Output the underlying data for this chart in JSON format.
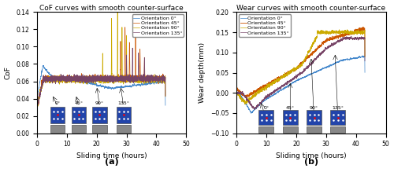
{
  "title_a": "CoF curves with smooth counter-surface",
  "title_b": "Wear curves with smooth counter-surface",
  "xlabel": "Sliding time (hours)",
  "ylabel_a": "CoF",
  "ylabel_b": "Wear depth(mm)",
  "label_a": "(a)",
  "label_b": "(b)",
  "legend_entries": [
    "Orientation 0°",
    "Orientation 45°",
    "Orientation 90°",
    "Orientation 135°"
  ],
  "colors": [
    "#4488CC",
    "#CC5500",
    "#CCAA00",
    "#774466"
  ],
  "xlim": [
    0,
    50
  ],
  "ylim_a": [
    0,
    0.14
  ],
  "ylim_b": [
    -0.1,
    0.2
  ],
  "yticks_a": [
    0,
    0.02,
    0.04,
    0.06,
    0.08,
    0.1,
    0.12,
    0.14
  ],
  "yticks_b": [
    -0.1,
    -0.05,
    0.0,
    0.05,
    0.1,
    0.15,
    0.2
  ],
  "xticks": [
    0,
    10,
    20,
    30,
    40,
    50
  ],
  "bg_color": "#FFFFFF",
  "axes_bg": "#FFFFFF",
  "seed": 42
}
